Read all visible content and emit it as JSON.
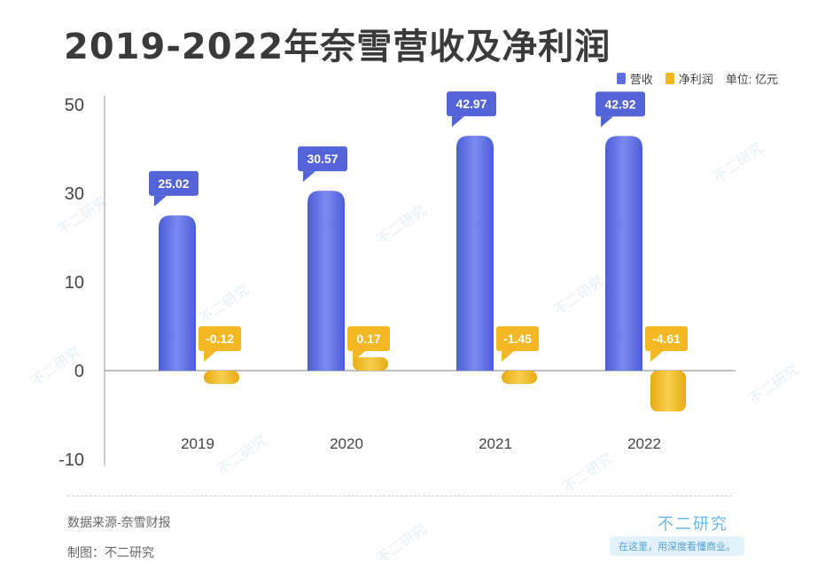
{
  "title": "2019-2022年奈雪营收及净利润",
  "legend": {
    "revenue": "营收",
    "net_profit": "净利润",
    "unit": "单位: 亿元"
  },
  "footer": {
    "source": "数据来源-奈雪财报",
    "maker": "制图：不二研究",
    "brand": "不二研究",
    "slogan": "在这里，用深度看懂商业。",
    "watermark": "不二研究"
  },
  "colors": {
    "revenue": "#5b6fe0",
    "net_profit": "#f1b51d",
    "revenue_label_bg": "#5264d8",
    "net_profit_label_bg": "#f3b823"
  },
  "chart_data": {
    "type": "bar",
    "title": "2019-2022年奈雪营收及净利润",
    "xlabel": "",
    "ylabel": "",
    "unit": "亿元",
    "categories": [
      "2019",
      "2020",
      "2021",
      "2022"
    ],
    "series": [
      {
        "name": "营收",
        "values": [
          25.02,
          30.57,
          42.97,
          42.92
        ],
        "labels": [
          "25.02",
          "30.57",
          "42.97",
          "42.92"
        ]
      },
      {
        "name": "净利润",
        "values": [
          -0.12,
          0.17,
          -1.45,
          -4.61
        ],
        "labels": [
          "-0.12",
          "0.17",
          "-1.45",
          "-4.61"
        ]
      }
    ],
    "yticks": [
      50,
      30,
      10,
      0,
      -10
    ],
    "ytick_labels": [
      "50",
      "30",
      "10",
      "0",
      "-10"
    ],
    "ylim": [
      -10,
      50
    ],
    "grid": false,
    "legend_position": "top-right"
  }
}
